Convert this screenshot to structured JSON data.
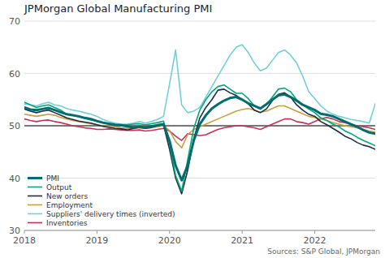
{
  "chart_data": {
    "type": "line",
    "title": "JPMorgan Global Manufacturing PMI",
    "annotations": [
      "Sources: S&P Global, JPMorgan"
    ],
    "x": [
      2018.0,
      2018.083333,
      2018.166667,
      2018.25,
      2018.333333,
      2018.416667,
      2018.5,
      2018.583333,
      2018.666667,
      2018.75,
      2018.833333,
      2018.916667,
      2019.0,
      2019.083333,
      2019.166667,
      2019.25,
      2019.333333,
      2019.416667,
      2019.5,
      2019.583333,
      2019.666667,
      2019.75,
      2019.833333,
      2019.916667,
      2020.0,
      2020.083333,
      2020.166667,
      2020.25,
      2020.333333,
      2020.416667,
      2020.5,
      2020.583333,
      2020.666667,
      2020.75,
      2020.833333,
      2020.916667,
      2021.0,
      2021.083333,
      2021.166667,
      2021.25,
      2021.333333,
      2021.416667,
      2021.5,
      2021.583333,
      2021.666667,
      2021.75,
      2021.833333,
      2021.916667,
      2022.0,
      2022.083333,
      2022.166667,
      2022.25,
      2022.333333,
      2022.416667,
      2022.5,
      2022.583333,
      2022.666667,
      2022.75,
      2022.833333
    ],
    "xlim": [
      2018.0,
      2022.833333
    ],
    "xticks": [
      2018,
      2019,
      2020,
      2021,
      2022
    ],
    "ylim": [
      30,
      70
    ],
    "yticks": [
      30,
      40,
      50,
      60,
      70
    ],
    "reference_line": 50,
    "grid": true,
    "legend": "lower left",
    "series": [
      {
        "name": "PMI",
        "color": "#006e6e",
        "values": [
          53.5,
          53.1,
          53.0,
          53.2,
          53.4,
          53.0,
          52.6,
          52.2,
          52.0,
          51.8,
          51.5,
          51.3,
          50.9,
          50.6,
          50.4,
          50.2,
          50.1,
          49.9,
          49.7,
          49.8,
          49.7,
          49.9,
          50.1,
          50.3,
          47.1,
          42.4,
          39.6,
          42.4,
          47.2,
          50.3,
          52.0,
          53.3,
          54.1,
          54.8,
          55.3,
          55.5,
          55.0,
          54.3,
          53.8,
          53.3,
          54.1,
          55.0,
          55.8,
          56.0,
          55.5,
          54.8,
          54.0,
          53.5,
          53.0,
          52.3,
          52.1,
          51.8,
          51.3,
          50.8,
          50.3,
          49.8,
          49.2,
          48.7,
          48.5
        ]
      },
      {
        "name": "Output",
        "color": "#00a878",
        "values": [
          54.5,
          54.0,
          53.5,
          53.8,
          54.0,
          53.5,
          53.0,
          52.2,
          52.0,
          51.7,
          51.4,
          51.1,
          50.9,
          50.5,
          50.3,
          50.2,
          50.1,
          50.2,
          50.3,
          50.4,
          50.2,
          50.4,
          50.6,
          50.9,
          46.5,
          40.5,
          37.5,
          43.5,
          49.5,
          53.0,
          55.0,
          56.5,
          57.5,
          57.8,
          57.0,
          56.2,
          56.2,
          55.2,
          53.8,
          53.2,
          54.0,
          55.5,
          57.0,
          57.2,
          56.5,
          55.0,
          54.0,
          53.2,
          52.5,
          51.5,
          51.0,
          50.3,
          49.8,
          49.0,
          48.5,
          47.8,
          47.2,
          46.7,
          46.2
        ]
      },
      {
        "name": "New orders",
        "color": "#1a2e44",
        "values": [
          53.2,
          52.8,
          52.5,
          52.8,
          53.0,
          52.5,
          52.0,
          51.5,
          51.2,
          50.9,
          50.7,
          50.5,
          50.2,
          49.9,
          49.7,
          49.5,
          49.4,
          49.2,
          49.5,
          49.7,
          49.5,
          49.7,
          50.0,
          50.2,
          45.5,
          40.0,
          37.0,
          41.5,
          47.5,
          51.5,
          53.5,
          55.0,
          56.8,
          57.0,
          56.3,
          55.8,
          55.0,
          54.2,
          53.0,
          52.5,
          53.2,
          54.8,
          56.0,
          56.3,
          55.5,
          54.0,
          53.0,
          52.2,
          51.8,
          50.8,
          50.2,
          49.5,
          48.8,
          48.0,
          47.5,
          46.8,
          46.3,
          46.0,
          45.5
        ]
      },
      {
        "name": "Employment",
        "color": "#c8a040",
        "values": [
          52.2,
          52.0,
          51.8,
          52.0,
          52.2,
          52.0,
          51.6,
          51.3,
          51.0,
          50.8,
          50.6,
          50.4,
          50.2,
          50.0,
          49.9,
          49.8,
          49.6,
          49.5,
          49.4,
          49.6,
          49.5,
          49.6,
          49.8,
          50.0,
          49.1,
          47.0,
          45.8,
          48.3,
          49.3,
          49.8,
          50.3,
          50.8,
          51.3,
          51.8,
          52.3,
          52.8,
          53.1,
          53.3,
          53.0,
          52.6,
          52.8,
          53.3,
          53.8,
          53.8,
          53.3,
          52.8,
          52.3,
          51.8,
          51.6,
          51.3,
          51.0,
          50.6,
          50.3,
          50.0,
          49.8,
          49.6,
          49.3,
          49.0,
          48.8
        ]
      },
      {
        "name": "Suppliers' delivery times (inverted)",
        "color": "#70d0d8",
        "values": [
          54.2,
          54.0,
          53.8,
          54.2,
          54.5,
          54.0,
          53.8,
          53.3,
          53.0,
          52.8,
          52.5,
          52.2,
          51.8,
          51.2,
          50.8,
          50.5,
          50.3,
          50.3,
          50.5,
          50.8,
          50.5,
          50.8,
          51.2,
          51.8,
          58.0,
          64.5,
          54.0,
          52.5,
          52.8,
          53.5,
          55.5,
          57.5,
          59.5,
          61.5,
          63.5,
          65.0,
          65.5,
          64.0,
          62.0,
          60.5,
          61.0,
          62.5,
          64.0,
          64.5,
          63.5,
          62.0,
          59.5,
          56.5,
          55.2,
          53.8,
          52.8,
          52.2,
          51.8,
          51.5,
          51.2,
          51.0,
          50.8,
          50.5,
          54.2
        ]
      },
      {
        "name": "Inventories",
        "color": "#c83058",
        "values": [
          51.3,
          51.0,
          50.8,
          51.0,
          51.1,
          50.8,
          50.6,
          50.3,
          50.0,
          49.8,
          49.6,
          49.5,
          49.3,
          49.3,
          49.4,
          49.3,
          49.2,
          49.1,
          49.1,
          49.2,
          49.0,
          49.1,
          49.3,
          49.5,
          49.0,
          48.0,
          47.2,
          48.5,
          48.3,
          48.1,
          48.3,
          48.8,
          49.3,
          49.6,
          49.8,
          50.0,
          50.0,
          49.8,
          49.6,
          49.3,
          49.8,
          50.3,
          50.8,
          51.3,
          51.3,
          50.8,
          50.6,
          50.3,
          50.8,
          51.3,
          51.6,
          51.3,
          50.8,
          50.6,
          50.3,
          50.0,
          49.8,
          49.6,
          49.3
        ]
      }
    ]
  }
}
